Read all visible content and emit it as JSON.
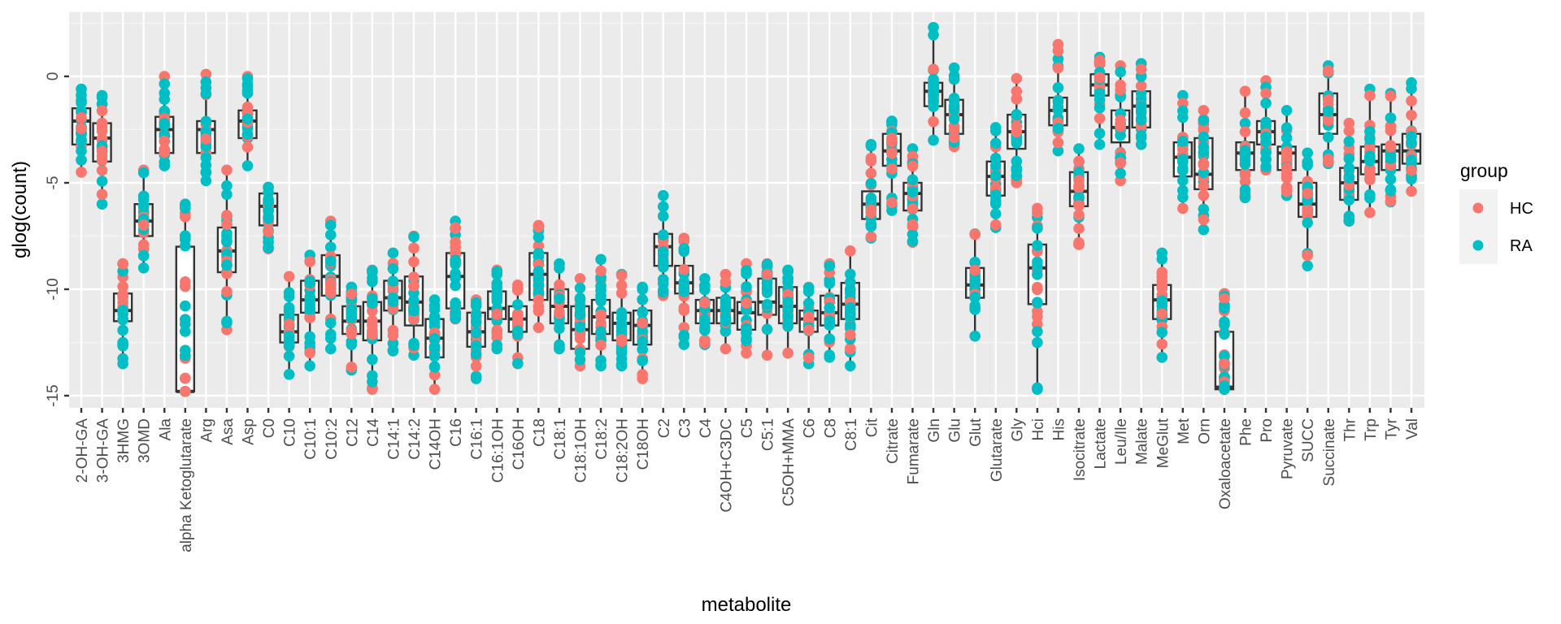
{
  "chart_data": {
    "type": "boxplot-with-points",
    "title": "",
    "xlabel": "metabolite",
    "ylabel": "glog(count)",
    "ylim": [
      -15.6,
      3.0
    ],
    "yticks": [
      0,
      -5,
      -10,
      -15
    ],
    "ytick_labels": [
      "0",
      "-5",
      "-10",
      "-15"
    ],
    "grid": true,
    "legend": {
      "title": "group",
      "position": "right",
      "entries": [
        {
          "label": "HC",
          "color": "#F8766D"
        },
        {
          "label": "RA",
          "color": "#00BFC4"
        }
      ]
    },
    "categories": [
      "2-OH-GA",
      "3-OH-GA",
      "3HMG",
      "3OMD",
      "Ala",
      "alpha Ketoglutarate",
      "Arg",
      "Asa",
      "Asp",
      "C0",
      "C10",
      "C10:1",
      "C10:2",
      "C12",
      "C14",
      "C14:1",
      "C14:2",
      "C14OH",
      "C16",
      "C16:1",
      "C16:1OH",
      "C16OH",
      "C18",
      "C18:1",
      "C18:1OH",
      "C18:2",
      "C18:2OH",
      "C18OH",
      "C2",
      "C3",
      "C4",
      "C4OH+C3DC",
      "C5",
      "C5:1",
      "C5OH+MMA",
      "C6",
      "C8",
      "C8:1",
      "Cit",
      "Citrate",
      "Fumarate",
      "Gln",
      "Glu",
      "Glut",
      "Glutarate",
      "Gly",
      "Hci",
      "His",
      "Isocitrate",
      "Lactate",
      "Leu/Ile",
      "Malate",
      "MeGlut",
      "Met",
      "Orn",
      "Oxaloacetate",
      "Phe",
      "Pro",
      "Pyruvate",
      "SUCC",
      "Succinate",
      "Thr",
      "Trp",
      "Tyr",
      "Val"
    ],
    "boxes": [
      {
        "low": -4.5,
        "q1": -3.2,
        "median": -2.1,
        "q3": -1.5,
        "high": -0.6
      },
      {
        "low": -6.0,
        "q1": -4.0,
        "median": -2.9,
        "q3": -2.2,
        "high": -0.9
      },
      {
        "low": -13.5,
        "q1": -11.5,
        "median": -11.0,
        "q3": -10.2,
        "high": -8.8
      },
      {
        "low": -9.0,
        "q1": -7.5,
        "median": -6.8,
        "q3": -6.0,
        "high": -4.4
      },
      {
        "low": -4.2,
        "q1": -3.6,
        "median": -2.5,
        "q3": -1.9,
        "high": 0.0
      },
      {
        "low": -14.8,
        "q1": -14.8,
        "median": -14.8,
        "q3": -8.0,
        "high": -6.0
      },
      {
        "low": -4.9,
        "q1": -3.6,
        "median": -2.5,
        "q3": -2.1,
        "high": 0.1
      },
      {
        "low": -11.9,
        "q1": -9.2,
        "median": -8.2,
        "q3": -7.1,
        "high": -4.4
      },
      {
        "low": -4.2,
        "q1": -2.9,
        "median": -2.1,
        "q3": -1.6,
        "high": 0.0
      },
      {
        "low": -8.1,
        "q1": -7.0,
        "median": -6.1,
        "q3": -5.5,
        "high": -5.2
      },
      {
        "low": -14.0,
        "q1": -12.5,
        "median": -12.0,
        "q3": -11.2,
        "high": -9.4
      },
      {
        "low": -13.6,
        "q1": -11.1,
        "median": -10.5,
        "q3": -9.6,
        "high": -8.4
      },
      {
        "low": -12.8,
        "q1": -10.3,
        "median": -9.4,
        "q3": -8.4,
        "high": -6.8
      },
      {
        "low": -13.8,
        "q1": -12.1,
        "median": -11.5,
        "q3": -10.8,
        "high": -9.9
      },
      {
        "low": -14.7,
        "q1": -12.4,
        "median": -11.5,
        "q3": -10.6,
        "high": -9.1
      },
      {
        "low": -12.9,
        "q1": -11.0,
        "median": -10.4,
        "q3": -9.6,
        "high": -8.3
      },
      {
        "low": -13.1,
        "q1": -11.7,
        "median": -10.6,
        "q3": -9.4,
        "high": -7.5
      },
      {
        "low": -14.7,
        "q1": -13.2,
        "median": -12.3,
        "q3": -11.4,
        "high": -10.5
      },
      {
        "low": -11.4,
        "q1": -10.9,
        "median": -9.4,
        "q3": -8.3,
        "high": -6.8
      },
      {
        "low": -14.2,
        "q1": -12.7,
        "median": -12.0,
        "q3": -11.1,
        "high": -10.5
      },
      {
        "low": -12.8,
        "q1": -11.4,
        "median": -10.9,
        "q3": -10.1,
        "high": -9.1
      },
      {
        "low": -13.5,
        "q1": -12.0,
        "median": -11.4,
        "q3": -10.8,
        "high": -9.8
      },
      {
        "low": -11.8,
        "q1": -10.5,
        "median": -9.3,
        "q3": -8.3,
        "high": -7.0
      },
      {
        "low": -12.8,
        "q1": -11.6,
        "median": -10.8,
        "q3": -10.0,
        "high": -8.8
      },
      {
        "low": -13.6,
        "q1": -12.8,
        "median": -11.9,
        "q3": -10.8,
        "high": -9.5
      },
      {
        "low": -13.6,
        "q1": -12.1,
        "median": -11.3,
        "q3": -10.5,
        "high": -8.6
      },
      {
        "low": -13.6,
        "q1": -12.4,
        "median": -11.6,
        "q3": -11.1,
        "high": -9.3
      },
      {
        "low": -14.2,
        "q1": -12.6,
        "median": -11.7,
        "q3": -11.0,
        "high": -9.9
      },
      {
        "low": -10.3,
        "q1": -8.9,
        "median": -8.0,
        "q3": -7.4,
        "high": -5.6
      },
      {
        "low": -12.6,
        "q1": -10.2,
        "median": -9.7,
        "q3": -8.9,
        "high": -7.6
      },
      {
        "low": -12.6,
        "q1": -11.6,
        "median": -11.0,
        "q3": -10.5,
        "high": -9.5
      },
      {
        "low": -12.8,
        "q1": -11.6,
        "median": -11.0,
        "q3": -10.4,
        "high": -9.3
      },
      {
        "low": -13.0,
        "q1": -11.9,
        "median": -11.1,
        "q3": -10.6,
        "high": -8.8
      },
      {
        "low": -13.1,
        "q1": -11.2,
        "median": -10.6,
        "q3": -9.5,
        "high": -8.8
      },
      {
        "low": -13.0,
        "q1": -11.6,
        "median": -10.8,
        "q3": -9.9,
        "high": -9.1
      },
      {
        "low": -13.5,
        "q1": -12.0,
        "median": -11.4,
        "q3": -11.0,
        "high": -9.9
      },
      {
        "low": -13.2,
        "q1": -11.7,
        "median": -11.1,
        "q3": -10.3,
        "high": -8.8
      },
      {
        "low": -13.6,
        "q1": -11.4,
        "median": -10.7,
        "q3": -9.7,
        "high": -8.2
      },
      {
        "low": -7.6,
        "q1": -6.7,
        "median": -6.0,
        "q3": -5.4,
        "high": -3.2
      },
      {
        "low": -6.3,
        "q1": -4.2,
        "median": -3.5,
        "q3": -2.7,
        "high": -2.1
      },
      {
        "low": -7.8,
        "q1": -6.3,
        "median": -5.5,
        "q3": -5.0,
        "high": -3.4
      },
      {
        "low": -3.0,
        "q1": -1.4,
        "median": -0.7,
        "q3": -0.3,
        "high": 2.3
      },
      {
        "low": -3.3,
        "q1": -2.7,
        "median": -1.8,
        "q3": -1.1,
        "high": 0.4
      },
      {
        "low": -12.2,
        "q1": -10.4,
        "median": -9.8,
        "q3": -9.0,
        "high": -7.4
      },
      {
        "low": -7.1,
        "q1": -5.6,
        "median": -4.7,
        "q3": -4.0,
        "high": -2.4
      },
      {
        "low": -5.0,
        "q1": -3.4,
        "median": -2.6,
        "q3": -1.8,
        "high": -0.1
      },
      {
        "low": -14.7,
        "q1": -10.7,
        "median": -9.0,
        "q3": -7.9,
        "high": -6.2
      },
      {
        "low": -3.5,
        "q1": -2.3,
        "median": -1.6,
        "q3": -1.0,
        "high": 1.5
      },
      {
        "low": -7.9,
        "q1": -6.1,
        "median": -5.4,
        "q3": -4.5,
        "high": -3.4
      },
      {
        "low": -3.2,
        "q1": -0.9,
        "median": -0.4,
        "q3": 0.1,
        "high": 0.9
      },
      {
        "low": -4.9,
        "q1": -3.1,
        "median": -2.4,
        "q3": -1.6,
        "high": 0.5
      },
      {
        "low": -3.2,
        "q1": -2.4,
        "median": -1.4,
        "q3": -0.7,
        "high": 0.6
      },
      {
        "low": -13.2,
        "q1": -11.4,
        "median": -10.5,
        "q3": -9.8,
        "high": -8.3
      },
      {
        "low": -6.2,
        "q1": -4.7,
        "median": -3.8,
        "q3": -3.1,
        "high": -0.9
      },
      {
        "low": -7.2,
        "q1": -5.3,
        "median": -4.6,
        "q3": -2.9,
        "high": -1.6
      },
      {
        "low": -14.7,
        "q1": -14.7,
        "median": -14.6,
        "q3": -12.0,
        "high": -10.2
      },
      {
        "low": -5.7,
        "q1": -4.4,
        "median": -3.6,
        "q3": -3.1,
        "high": -0.7
      },
      {
        "low": -4.4,
        "q1": -3.2,
        "median": -2.6,
        "q3": -2.1,
        "high": -0.2
      },
      {
        "low": -5.6,
        "q1": -4.4,
        "median": -3.6,
        "q3": -3.3,
        "high": -1.6
      },
      {
        "low": -8.9,
        "q1": -6.6,
        "median": -6.0,
        "q3": -5.0,
        "high": -3.6
      },
      {
        "low": -4.1,
        "q1": -2.7,
        "median": -1.8,
        "q3": -0.8,
        "high": 0.5
      },
      {
        "low": -6.8,
        "q1": -5.8,
        "median": -5.0,
        "q3": -4.3,
        "high": -2.2
      },
      {
        "low": -6.4,
        "q1": -4.6,
        "median": -4.0,
        "q3": -3.3,
        "high": -0.6
      },
      {
        "low": -5.9,
        "q1": -4.4,
        "median": -3.5,
        "q3": -3.2,
        "high": -0.8
      },
      {
        "low": -5.4,
        "q1": -4.1,
        "median": -3.5,
        "q3": -2.7,
        "high": -0.3
      }
    ]
  },
  "legend_title": "group",
  "legend_labels": [
    "HC",
    "RA"
  ]
}
